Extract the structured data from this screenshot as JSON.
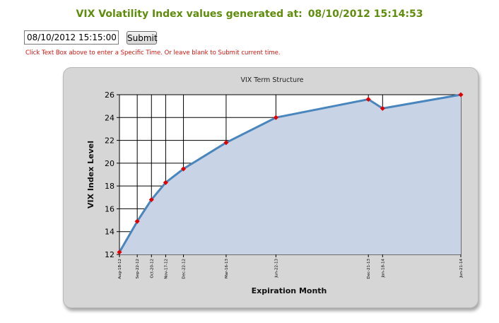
{
  "header": {
    "title": "VIX Volatility Index values generated at:",
    "timestamp": "08/10/2012 15:14:53"
  },
  "form": {
    "time_value": "08/10/2012 15:15:00",
    "submit_label": "Submit",
    "hint": "Click Text Box above to enter a Specific Time.  Or leave blank to Submit current time."
  },
  "colors": {
    "header": "#5e8d0a",
    "hint": "#d2150f",
    "line": "#4a86be",
    "area": "#c9d3e6",
    "marker": "#e00000"
  },
  "chart_data": {
    "type": "area",
    "title": "VIX Term Structure",
    "xlabel": "Expiration Month",
    "ylabel": "VIX Index Level",
    "ylim": [
      12,
      26
    ],
    "yticks": [
      12,
      14,
      16,
      18,
      20,
      22,
      24,
      26
    ],
    "grid": true,
    "x": [
      "2012-08-18",
      "2012-09-22",
      "2012-10-20",
      "2012-11-17",
      "2012-12-22",
      "2013-03-16",
      "2013-06-22",
      "2013-12-21",
      "2014-01-18",
      "2014-06-21"
    ],
    "xticklabels": [
      "Aug-18-12",
      "Sep-22-12",
      "Oct-20-12",
      "Nov-17-12",
      "Dec-22-12",
      "Mar-16-13",
      "Jun-22-13",
      "Dec-21-13",
      "Jan-18-14",
      "Jun-21-14"
    ],
    "values": [
      12.2,
      14.9,
      16.8,
      18.3,
      19.5,
      21.8,
      24.0,
      25.6,
      24.8,
      26.0
    ]
  }
}
